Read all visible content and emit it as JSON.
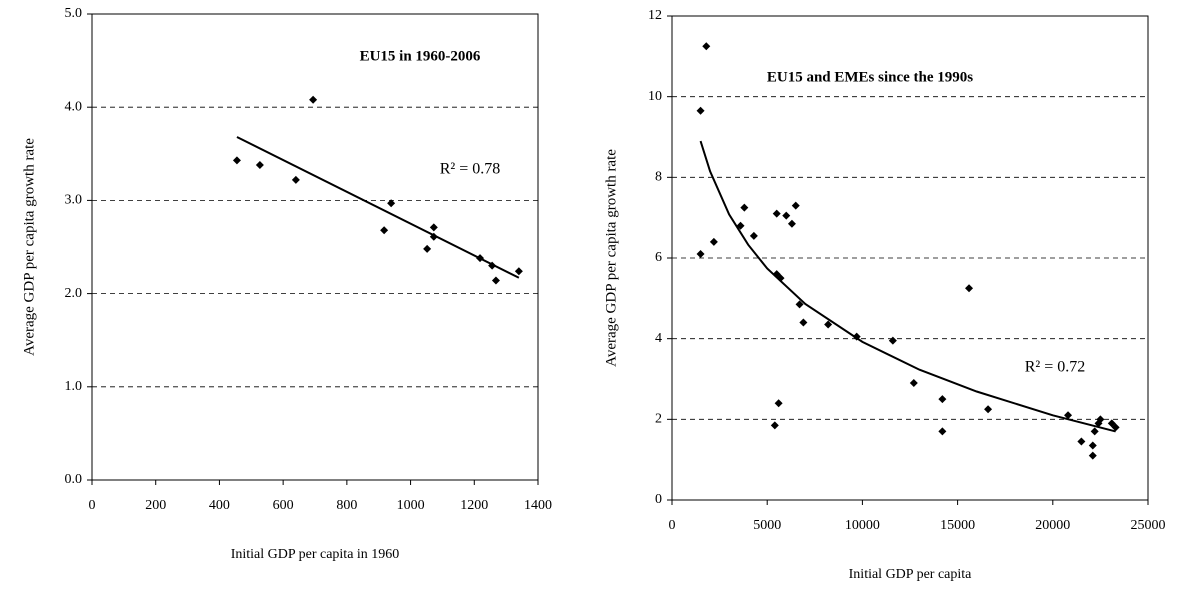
{
  "chart_data": [
    {
      "type": "scatter",
      "title": "EU15 in 1960-2006",
      "annotation": "R² = 0.78",
      "xlabel": "Initial GDP per capita in 1960",
      "ylabel": "Average GDP per capita growth rate",
      "color": "#000000",
      "grid": true,
      "xlim": [
        0,
        1400
      ],
      "xticks": [
        0,
        200,
        400,
        600,
        800,
        1000,
        1200,
        1400
      ],
      "ylim": [
        0,
        5
      ],
      "yticks": [
        {
          "value": 0,
          "label": "0.0"
        },
        {
          "value": 1,
          "label": "1.0"
        },
        {
          "value": 2,
          "label": "2.0"
        },
        {
          "value": 3,
          "label": "3.0"
        },
        {
          "value": 4,
          "label": "4.0"
        },
        {
          "value": 5,
          "label": "5.0"
        }
      ],
      "x": [
        455,
        527,
        640,
        694,
        917,
        939,
        1052,
        1073,
        1073,
        1218,
        1256,
        1268,
        1340
      ],
      "values": [
        3.43,
        3.38,
        3.22,
        4.08,
        2.68,
        2.97,
        2.48,
        2.71,
        2.61,
        2.38,
        2.3,
        2.14,
        2.24
      ],
      "trendline": {
        "x": [
          455,
          1340
        ],
        "values": [
          3.68,
          2.17
        ]
      }
    },
    {
      "type": "scatter",
      "title": "EU15 and EMEs since the 1990s",
      "annotation": "R² = 0.72",
      "xlabel": "Initial GDP per capita",
      "ylabel": "Average GDP per capita growth rate",
      "color": "#000000",
      "grid": true,
      "xlim": [
        0,
        25000
      ],
      "xticks": [
        0,
        5000,
        10000,
        15000,
        20000,
        25000
      ],
      "ylim": [
        0,
        12
      ],
      "yticks": [
        0,
        2,
        4,
        6,
        8,
        10,
        12
      ],
      "x": [
        1800,
        1500,
        1500,
        2200,
        3600,
        3800,
        4300,
        5500,
        6000,
        6300,
        6500,
        5500,
        5700,
        6700,
        6900,
        8200,
        9700,
        11600,
        15600,
        5600,
        5400,
        12700,
        14200,
        14200,
        16600,
        20800,
        21500,
        22100,
        22100,
        22200,
        22400,
        22500,
        23100,
        23300
      ],
      "values": [
        11.25,
        9.65,
        6.1,
        6.4,
        6.8,
        7.25,
        6.55,
        7.1,
        7.05,
        6.85,
        7.3,
        5.6,
        5.5,
        4.85,
        4.4,
        4.35,
        4.05,
        3.95,
        5.25,
        2.4,
        1.85,
        2.9,
        2.5,
        1.7,
        2.25,
        2.1,
        1.45,
        1.35,
        1.1,
        1.7,
        1.9,
        2.0,
        1.9,
        1.8
      ],
      "trendline": {
        "x": [
          1500,
          2000,
          3000,
          4000,
          5000,
          7000,
          10000,
          13000,
          16000,
          20000,
          23300
        ],
        "values": [
          8.9,
          8.15,
          7.08,
          6.33,
          5.74,
          4.86,
          3.92,
          3.23,
          2.69,
          2.1,
          1.7
        ]
      }
    }
  ]
}
